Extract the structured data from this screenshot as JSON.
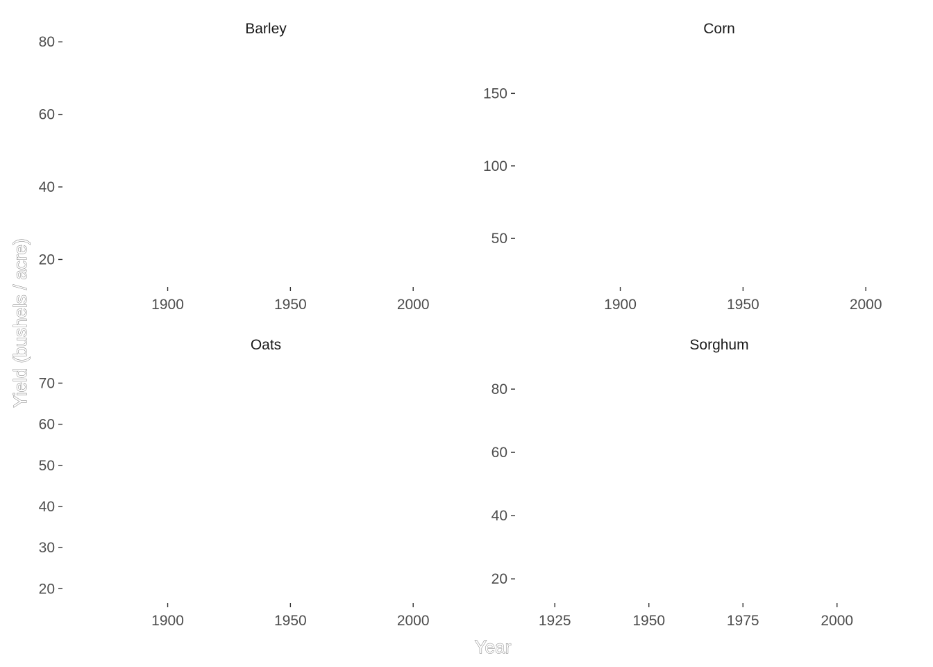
{
  "chart_data": {
    "type": "line",
    "xlabel": "Year",
    "ylabel": "Yield (bushels / acre)",
    "grid": false,
    "panels": [
      {
        "title": "Barley",
        "x_ticks": [
          1900,
          1950,
          2000
        ],
        "y_ticks": [
          20,
          40,
          60,
          80
        ],
        "xlim": [
          1858,
          2022
        ],
        "ylim": [
          13,
          81
        ],
        "series": []
      },
      {
        "title": "Corn",
        "x_ticks": [
          1900,
          1950,
          2000
        ],
        "y_ticks": [
          50,
          100,
          150
        ],
        "xlim": [
          1858,
          2022
        ],
        "ylim": [
          18,
          188
        ],
        "series": []
      },
      {
        "title": "Oats",
        "x_ticks": [
          1900,
          1950,
          2000
        ],
        "y_ticks": [
          20,
          30,
          40,
          50,
          60,
          70
        ],
        "xlim": [
          1858,
          2022
        ],
        "ylim": [
          17,
          77
        ],
        "series": []
      },
      {
        "title": "Sorghum",
        "x_ticks": [
          1925,
          1950,
          1975,
          2000
        ],
        "y_ticks": [
          20,
          40,
          60,
          80
        ],
        "xlim": [
          1915,
          2022
        ],
        "ylim": [
          13,
          91
        ],
        "series": []
      }
    ]
  }
}
